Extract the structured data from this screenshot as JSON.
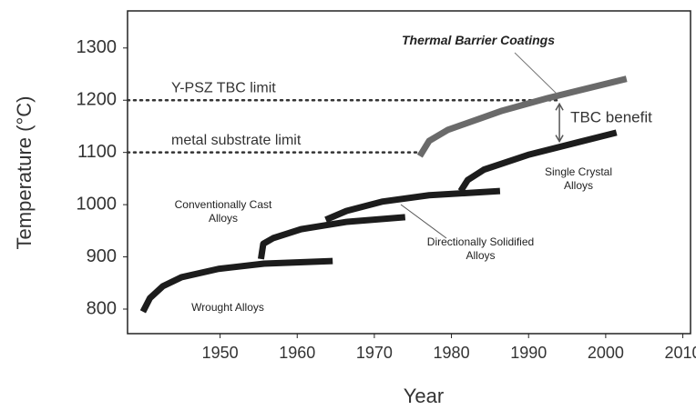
{
  "chart_data": {
    "type": "line",
    "xlabel": "Year",
    "ylabel": "Temperature (°C)",
    "xlim": [
      1938,
      2011
    ],
    "ylim": [
      753,
      1371
    ],
    "xticks": [
      1950,
      1960,
      1970,
      1980,
      1990,
      2000,
      2010
    ],
    "yticks": [
      800,
      900,
      1000,
      1100,
      1200,
      1300
    ],
    "series": [
      {
        "name": "Wrought Alloys",
        "color": "#1c1c1c",
        "x": [
          1940,
          1940.9,
          1942.6,
          1945,
          1949.8,
          1955.7,
          1964.6
        ],
        "values": [
          795,
          821,
          844,
          861,
          877,
          887,
          892
        ]
      },
      {
        "name": "Conventionally Cast Alloys",
        "color": "#1c1c1c",
        "x": [
          1955.3,
          1955.6,
          1956.9,
          1960.5,
          1966.4,
          1974
        ],
        "values": [
          896,
          925,
          936,
          953,
          967,
          976
        ]
      },
      {
        "name": "Directionally Solidified Alloys",
        "color": "#1c1c1c",
        "x": [
          1963.7,
          1966.4,
          1971.1,
          1977.1,
          1986.3
        ],
        "values": [
          971,
          988,
          1006,
          1018,
          1026
        ]
      },
      {
        "name": "Single Crystal Alloys",
        "color": "#1c1c1c",
        "x": [
          1981.2,
          1982.1,
          1984.2,
          1990.1,
          2001.4
        ],
        "values": [
          1026,
          1047,
          1067,
          1096,
          1138
        ]
      },
      {
        "name": "Thermal Barrier Coatings",
        "color": "#6a6a6a",
        "x": [
          1975.9,
          1977.1,
          1979.5,
          1986.6,
          1992.5,
          2002.7
        ],
        "values": [
          1093,
          1122,
          1143,
          1180,
          1204,
          1241
        ]
      }
    ],
    "reference_lines": [
      {
        "label": "Y-PSZ TBC limit",
        "value": 1200
      },
      {
        "label": "metal substrate limit",
        "value": 1100
      }
    ],
    "annotations": [
      {
        "text": "TBC benefit",
        "x": 1994,
        "from": 1200,
        "to": 1100
      }
    ]
  }
}
